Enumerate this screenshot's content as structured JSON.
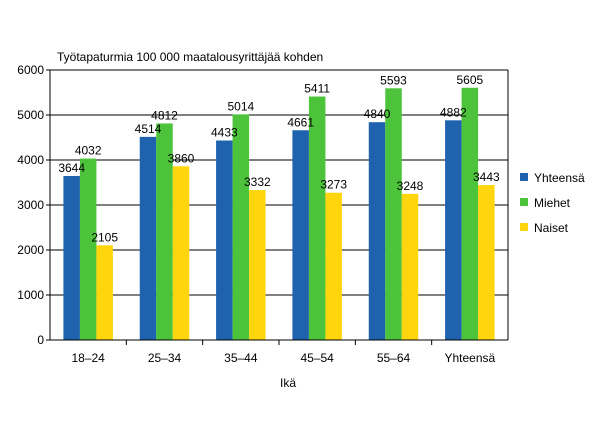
{
  "chart_data": {
    "type": "bar",
    "title": "Työtapaturmia 100 000 maatalousyrittäjää kohden",
    "xlabel": "Ikä",
    "ylabel": "",
    "categories": [
      "18–24",
      "25–34",
      "35–44",
      "45–54",
      "55–64",
      "Yhteensä"
    ],
    "ylim": [
      0,
      6000
    ],
    "yticks": [
      0,
      1000,
      2000,
      3000,
      4000,
      5000,
      6000
    ],
    "grid": true,
    "legend_position": "right",
    "series": [
      {
        "name": "Yhteensä",
        "color": "#1f62ae",
        "values": [
          3644,
          4514,
          4433,
          4661,
          4840,
          4882
        ]
      },
      {
        "name": "Miehet",
        "color": "#4cc33b",
        "values": [
          4032,
          4812,
          5014,
          5411,
          5593,
          5605
        ]
      },
      {
        "name": "Naiset",
        "color": "#ffd60d",
        "values": [
          2105,
          3860,
          3332,
          3273,
          3248,
          3443
        ]
      }
    ]
  }
}
